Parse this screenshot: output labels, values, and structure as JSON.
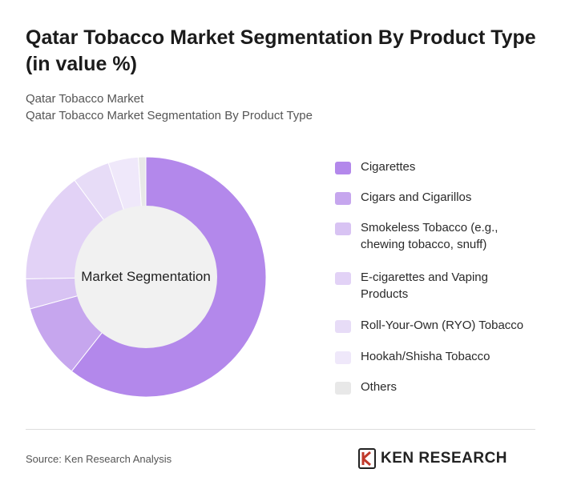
{
  "header": {
    "title": "Qatar Tobacco Market Segmentation By Product Type (in value %)",
    "breadcrumb_1": "Qatar Tobacco Market",
    "breadcrumb_2": "Qatar Tobacco Market Segmentation By Product Type"
  },
  "chart_data": {
    "type": "pie",
    "style": "donut",
    "center_label": "Market Segmentation",
    "categories": [
      "Cigarettes",
      "Cigars and Cigarillos",
      "Smokeless Tobacco (e.g., chewing tobacco, snuff)",
      "E-cigarettes and Vaping Products",
      "Roll-Your-Own (RYO) Tobacco",
      "Hookah/Shisha Tobacco",
      "Others"
    ],
    "values": [
      60,
      10,
      4,
      15,
      5,
      4,
      1
    ],
    "colors": [
      "#b388eb",
      "#c6a6ee",
      "#d8c3f3",
      "#e2d2f6",
      "#e7dcf7",
      "#efe8fa",
      "#e8e8e8"
    ],
    "legend_position": "right"
  },
  "footer": {
    "source": "Source: Ken Research Analysis",
    "logo_text": "KEN RESEARCH"
  }
}
